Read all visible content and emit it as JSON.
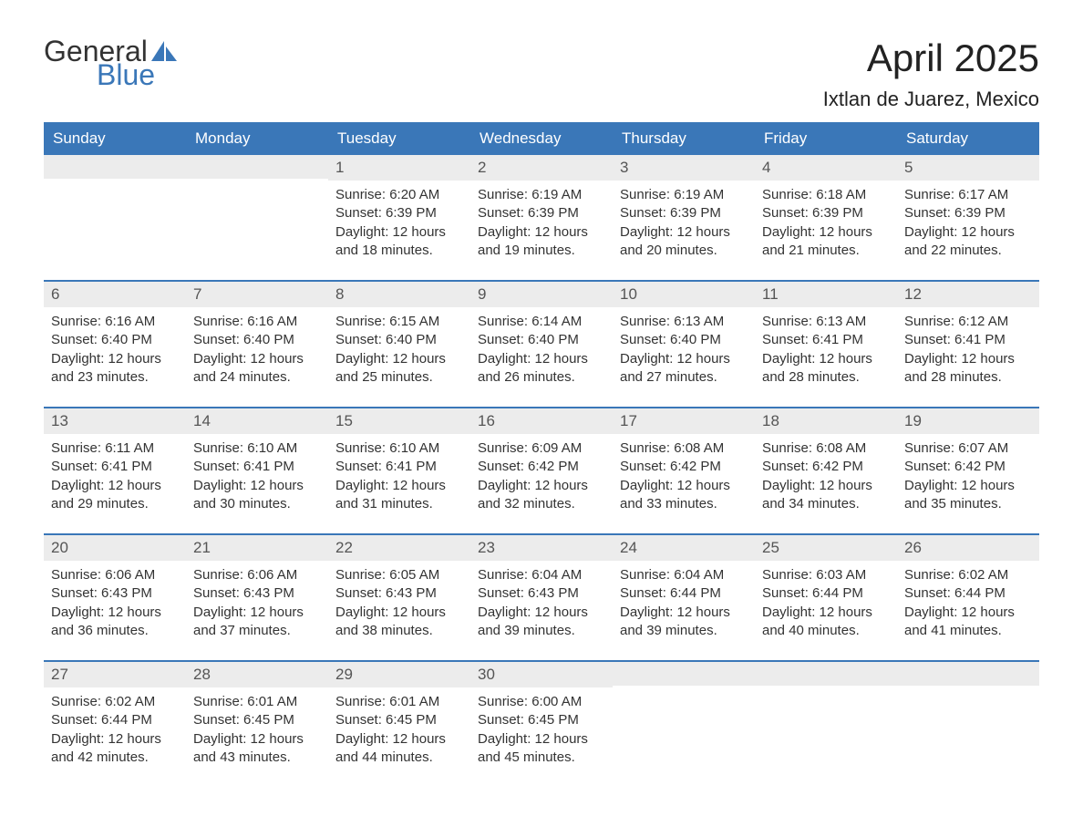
{
  "logo": {
    "text_general": "General",
    "text_blue": "Blue",
    "icon_color": "#3a77b8"
  },
  "header": {
    "title": "April 2025",
    "subtitle": "Ixtlan de Juarez, Mexico"
  },
  "colors": {
    "header_bg": "#3a77b8",
    "header_fg": "#ffffff",
    "daynum_bg": "#ececec",
    "daynum_fg": "#555555",
    "body_fg": "#333333",
    "week_border": "#3a77b8",
    "page_bg": "#ffffff"
  },
  "typography": {
    "title_fontsize": 42,
    "subtitle_fontsize": 22,
    "dow_fontsize": 17,
    "daynum_fontsize": 17,
    "body_fontsize": 15,
    "font_family": "Arial"
  },
  "day_labels": [
    "Sunday",
    "Monday",
    "Tuesday",
    "Wednesday",
    "Thursday",
    "Friday",
    "Saturday"
  ],
  "weeks": [
    [
      {
        "num": "",
        "sunrise": "",
        "sunset": "",
        "daylight1": "",
        "daylight2": ""
      },
      {
        "num": "",
        "sunrise": "",
        "sunset": "",
        "daylight1": "",
        "daylight2": ""
      },
      {
        "num": "1",
        "sunrise": "Sunrise: 6:20 AM",
        "sunset": "Sunset: 6:39 PM",
        "daylight1": "Daylight: 12 hours",
        "daylight2": "and 18 minutes."
      },
      {
        "num": "2",
        "sunrise": "Sunrise: 6:19 AM",
        "sunset": "Sunset: 6:39 PM",
        "daylight1": "Daylight: 12 hours",
        "daylight2": "and 19 minutes."
      },
      {
        "num": "3",
        "sunrise": "Sunrise: 6:19 AM",
        "sunset": "Sunset: 6:39 PM",
        "daylight1": "Daylight: 12 hours",
        "daylight2": "and 20 minutes."
      },
      {
        "num": "4",
        "sunrise": "Sunrise: 6:18 AM",
        "sunset": "Sunset: 6:39 PM",
        "daylight1": "Daylight: 12 hours",
        "daylight2": "and 21 minutes."
      },
      {
        "num": "5",
        "sunrise": "Sunrise: 6:17 AM",
        "sunset": "Sunset: 6:39 PM",
        "daylight1": "Daylight: 12 hours",
        "daylight2": "and 22 minutes."
      }
    ],
    [
      {
        "num": "6",
        "sunrise": "Sunrise: 6:16 AM",
        "sunset": "Sunset: 6:40 PM",
        "daylight1": "Daylight: 12 hours",
        "daylight2": "and 23 minutes."
      },
      {
        "num": "7",
        "sunrise": "Sunrise: 6:16 AM",
        "sunset": "Sunset: 6:40 PM",
        "daylight1": "Daylight: 12 hours",
        "daylight2": "and 24 minutes."
      },
      {
        "num": "8",
        "sunrise": "Sunrise: 6:15 AM",
        "sunset": "Sunset: 6:40 PM",
        "daylight1": "Daylight: 12 hours",
        "daylight2": "and 25 minutes."
      },
      {
        "num": "9",
        "sunrise": "Sunrise: 6:14 AM",
        "sunset": "Sunset: 6:40 PM",
        "daylight1": "Daylight: 12 hours",
        "daylight2": "and 26 minutes."
      },
      {
        "num": "10",
        "sunrise": "Sunrise: 6:13 AM",
        "sunset": "Sunset: 6:40 PM",
        "daylight1": "Daylight: 12 hours",
        "daylight2": "and 27 minutes."
      },
      {
        "num": "11",
        "sunrise": "Sunrise: 6:13 AM",
        "sunset": "Sunset: 6:41 PM",
        "daylight1": "Daylight: 12 hours",
        "daylight2": "and 28 minutes."
      },
      {
        "num": "12",
        "sunrise": "Sunrise: 6:12 AM",
        "sunset": "Sunset: 6:41 PM",
        "daylight1": "Daylight: 12 hours",
        "daylight2": "and 28 minutes."
      }
    ],
    [
      {
        "num": "13",
        "sunrise": "Sunrise: 6:11 AM",
        "sunset": "Sunset: 6:41 PM",
        "daylight1": "Daylight: 12 hours",
        "daylight2": "and 29 minutes."
      },
      {
        "num": "14",
        "sunrise": "Sunrise: 6:10 AM",
        "sunset": "Sunset: 6:41 PM",
        "daylight1": "Daylight: 12 hours",
        "daylight2": "and 30 minutes."
      },
      {
        "num": "15",
        "sunrise": "Sunrise: 6:10 AM",
        "sunset": "Sunset: 6:41 PM",
        "daylight1": "Daylight: 12 hours",
        "daylight2": "and 31 minutes."
      },
      {
        "num": "16",
        "sunrise": "Sunrise: 6:09 AM",
        "sunset": "Sunset: 6:42 PM",
        "daylight1": "Daylight: 12 hours",
        "daylight2": "and 32 minutes."
      },
      {
        "num": "17",
        "sunrise": "Sunrise: 6:08 AM",
        "sunset": "Sunset: 6:42 PM",
        "daylight1": "Daylight: 12 hours",
        "daylight2": "and 33 minutes."
      },
      {
        "num": "18",
        "sunrise": "Sunrise: 6:08 AM",
        "sunset": "Sunset: 6:42 PM",
        "daylight1": "Daylight: 12 hours",
        "daylight2": "and 34 minutes."
      },
      {
        "num": "19",
        "sunrise": "Sunrise: 6:07 AM",
        "sunset": "Sunset: 6:42 PM",
        "daylight1": "Daylight: 12 hours",
        "daylight2": "and 35 minutes."
      }
    ],
    [
      {
        "num": "20",
        "sunrise": "Sunrise: 6:06 AM",
        "sunset": "Sunset: 6:43 PM",
        "daylight1": "Daylight: 12 hours",
        "daylight2": "and 36 minutes."
      },
      {
        "num": "21",
        "sunrise": "Sunrise: 6:06 AM",
        "sunset": "Sunset: 6:43 PM",
        "daylight1": "Daylight: 12 hours",
        "daylight2": "and 37 minutes."
      },
      {
        "num": "22",
        "sunrise": "Sunrise: 6:05 AM",
        "sunset": "Sunset: 6:43 PM",
        "daylight1": "Daylight: 12 hours",
        "daylight2": "and 38 minutes."
      },
      {
        "num": "23",
        "sunrise": "Sunrise: 6:04 AM",
        "sunset": "Sunset: 6:43 PM",
        "daylight1": "Daylight: 12 hours",
        "daylight2": "and 39 minutes."
      },
      {
        "num": "24",
        "sunrise": "Sunrise: 6:04 AM",
        "sunset": "Sunset: 6:44 PM",
        "daylight1": "Daylight: 12 hours",
        "daylight2": "and 39 minutes."
      },
      {
        "num": "25",
        "sunrise": "Sunrise: 6:03 AM",
        "sunset": "Sunset: 6:44 PM",
        "daylight1": "Daylight: 12 hours",
        "daylight2": "and 40 minutes."
      },
      {
        "num": "26",
        "sunrise": "Sunrise: 6:02 AM",
        "sunset": "Sunset: 6:44 PM",
        "daylight1": "Daylight: 12 hours",
        "daylight2": "and 41 minutes."
      }
    ],
    [
      {
        "num": "27",
        "sunrise": "Sunrise: 6:02 AM",
        "sunset": "Sunset: 6:44 PM",
        "daylight1": "Daylight: 12 hours",
        "daylight2": "and 42 minutes."
      },
      {
        "num": "28",
        "sunrise": "Sunrise: 6:01 AM",
        "sunset": "Sunset: 6:45 PM",
        "daylight1": "Daylight: 12 hours",
        "daylight2": "and 43 minutes."
      },
      {
        "num": "29",
        "sunrise": "Sunrise: 6:01 AM",
        "sunset": "Sunset: 6:45 PM",
        "daylight1": "Daylight: 12 hours",
        "daylight2": "and 44 minutes."
      },
      {
        "num": "30",
        "sunrise": "Sunrise: 6:00 AM",
        "sunset": "Sunset: 6:45 PM",
        "daylight1": "Daylight: 12 hours",
        "daylight2": "and 45 minutes."
      },
      {
        "num": "",
        "sunrise": "",
        "sunset": "",
        "daylight1": "",
        "daylight2": ""
      },
      {
        "num": "",
        "sunrise": "",
        "sunset": "",
        "daylight1": "",
        "daylight2": ""
      },
      {
        "num": "",
        "sunrise": "",
        "sunset": "",
        "daylight1": "",
        "daylight2": ""
      }
    ]
  ]
}
